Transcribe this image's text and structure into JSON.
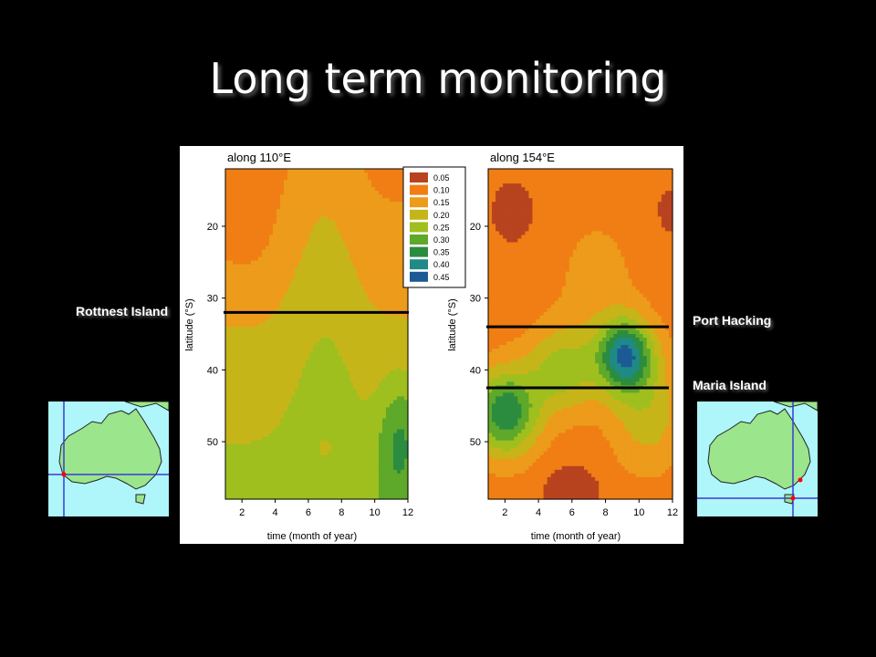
{
  "slide": {
    "title": "Long term monitoring"
  },
  "station_labels": {
    "rottnest": "Rottnest Island",
    "port_hacking": "Port Hacking",
    "maria": "Maria Island"
  },
  "colors": {
    "background": "#000000",
    "title_text": "#ffffff",
    "station_line": "#000000",
    "map_sea": "#aef6fa",
    "map_land": "#9be58c",
    "map_grid": "#3a3ad8",
    "map_station_dot": "#ff0000"
  },
  "chart_data": [
    {
      "type": "heatmap",
      "title": "along 110°E",
      "xlabel": "time (month of year)",
      "ylabel": "latitude (°S)",
      "x_ticks": [
        "2",
        "4",
        "6",
        "8",
        "10",
        "12"
      ],
      "y_ticks": [
        "20",
        "30",
        "40",
        "50"
      ],
      "xlim": [
        1,
        12
      ],
      "ylim": [
        12,
        58
      ],
      "legend": {
        "levels": [
          "0.05",
          "0.10",
          "0.15",
          "0.20",
          "0.25",
          "0.30",
          "0.35",
          "0.40",
          "0.45"
        ],
        "colors": [
          "#b8431f",
          "#f07e14",
          "#ed9b1a",
          "#c6b519",
          "#9fbf1e",
          "#5ea82a",
          "#2b8c3f",
          "#1f8a86",
          "#1c5a96"
        ],
        "placement": "top-right"
      },
      "station_line": {
        "label": "Rottnest Island",
        "latitude": 32
      }
    },
    {
      "type": "heatmap",
      "title": "along 154°E",
      "xlabel": "time (month of year)",
      "ylabel": "latitude (°S)",
      "x_ticks": [
        "2",
        "4",
        "6",
        "8",
        "10",
        "12"
      ],
      "y_ticks": [
        "20",
        "30",
        "40",
        "50"
      ],
      "xlim": [
        1,
        12
      ],
      "ylim": [
        12,
        58
      ],
      "station_lines": [
        {
          "label": "Port Hacking",
          "latitude": 34
        },
        {
          "label": "Maria Island",
          "latitude": 42.5
        }
      ]
    }
  ]
}
